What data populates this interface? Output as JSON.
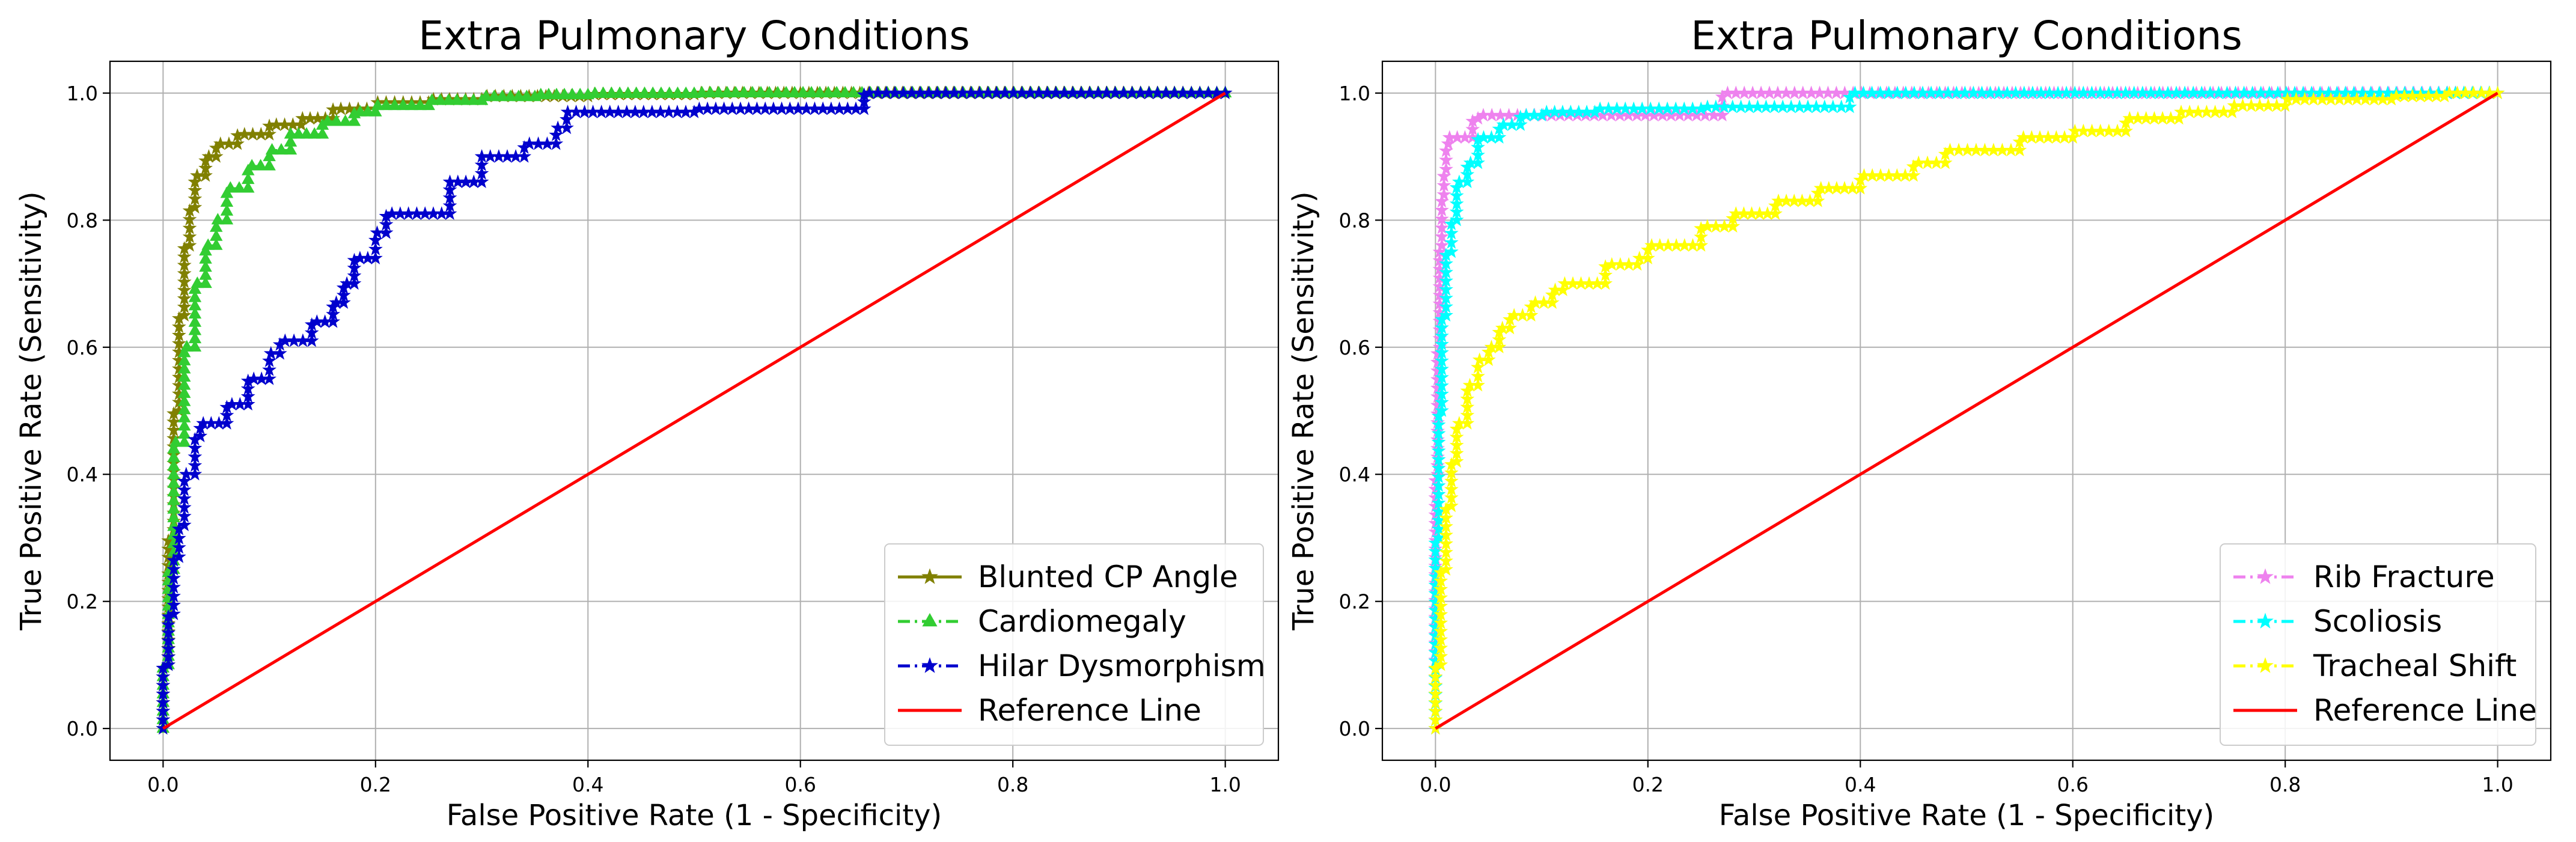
{
  "chart_data": [
    {
      "type": "line",
      "title": "Extra Pulmonary Conditions",
      "xlabel": "False Positive Rate (1 - Specificity)",
      "ylabel": "True Positive Rate (Sensitivity)",
      "xlim": [
        -0.05,
        1.05
      ],
      "ylim": [
        -0.05,
        1.05
      ],
      "xticks": [
        "0.0",
        "0.2",
        "0.4",
        "0.6",
        "0.8",
        "1.0"
      ],
      "yticks": [
        "0.0",
        "0.2",
        "0.4",
        "0.6",
        "0.8",
        "1.0"
      ],
      "grid": true,
      "legend_position": "lower right",
      "series": [
        {
          "name": "Blunted CP Angle",
          "color": "#808000",
          "marker": "star",
          "linestyle": "solid",
          "points": [
            [
              0,
              0
            ],
            [
              0.005,
              0.1
            ],
            [
              0.01,
              0.3
            ],
            [
              0.015,
              0.5
            ],
            [
              0.02,
              0.65
            ],
            [
              0.025,
              0.76
            ],
            [
              0.03,
              0.82
            ],
            [
              0.04,
              0.87
            ],
            [
              0.05,
              0.9
            ],
            [
              0.07,
              0.92
            ],
            [
              0.1,
              0.935
            ],
            [
              0.13,
              0.95
            ],
            [
              0.16,
              0.96
            ],
            [
              0.2,
              0.975
            ],
            [
              0.25,
              0.985
            ],
            [
              0.3,
              0.99
            ],
            [
              0.4,
              0.995
            ],
            [
              0.5,
              0.998
            ],
            [
              0.6,
              1.0
            ],
            [
              0.8,
              1.0
            ],
            [
              1.0,
              1.0
            ]
          ]
        },
        {
          "name": "Cardiomegaly",
          "color": "#32cd32",
          "marker": "triangle",
          "linestyle": "dashdot",
          "points": [
            [
              0,
              0
            ],
            [
              0.005,
              0.1
            ],
            [
              0.01,
              0.25
            ],
            [
              0.02,
              0.45
            ],
            [
              0.03,
              0.6
            ],
            [
              0.04,
              0.7
            ],
            [
              0.05,
              0.76
            ],
            [
              0.06,
              0.8
            ],
            [
              0.08,
              0.85
            ],
            [
              0.1,
              0.885
            ],
            [
              0.12,
              0.91
            ],
            [
              0.15,
              0.935
            ],
            [
              0.18,
              0.955
            ],
            [
              0.2,
              0.97
            ],
            [
              0.25,
              0.98
            ],
            [
              0.3,
              0.988
            ],
            [
              0.35,
              0.994
            ],
            [
              0.4,
              0.997
            ],
            [
              0.5,
              0.999
            ],
            [
              0.65,
              1.0
            ],
            [
              1.0,
              1.0
            ]
          ]
        },
        {
          "name": "Hilar Dysmorphism",
          "color": "#0000cd",
          "marker": "star",
          "linestyle": "dashdot",
          "points": [
            [
              0,
              0
            ],
            [
              0.005,
              0.1
            ],
            [
              0.01,
              0.18
            ],
            [
              0.015,
              0.27
            ],
            [
              0.02,
              0.32
            ],
            [
              0.03,
              0.4
            ],
            [
              0.035,
              0.46
            ],
            [
              0.06,
              0.48
            ],
            [
              0.08,
              0.51
            ],
            [
              0.1,
              0.55
            ],
            [
              0.11,
              0.59
            ],
            [
              0.14,
              0.61
            ],
            [
              0.16,
              0.64
            ],
            [
              0.17,
              0.67
            ],
            [
              0.18,
              0.7
            ],
            [
              0.2,
              0.74
            ],
            [
              0.21,
              0.78
            ],
            [
              0.27,
              0.81
            ],
            [
              0.3,
              0.86
            ],
            [
              0.34,
              0.9
            ],
            [
              0.37,
              0.92
            ],
            [
              0.38,
              0.945
            ],
            [
              0.5,
              0.97
            ],
            [
              0.66,
              0.975
            ],
            [
              0.665,
              1.0
            ],
            [
              1.0,
              1.0
            ]
          ]
        },
        {
          "name": "Reference Line",
          "color": "#ff0000",
          "marker": "none",
          "linestyle": "solid",
          "points": [
            [
              0,
              0
            ],
            [
              1,
              1
            ]
          ]
        }
      ]
    },
    {
      "type": "line",
      "title": "Extra Pulmonary Conditions",
      "xlabel": "False Positive Rate (1 - Specificity)",
      "ylabel": "True Positive Rate (Sensitivity)",
      "xlim": [
        -0.05,
        1.05
      ],
      "ylim": [
        -0.05,
        1.05
      ],
      "xticks": [
        "0.0",
        "0.2",
        "0.4",
        "0.6",
        "0.8",
        "1.0"
      ],
      "yticks": [
        "0.0",
        "0.2",
        "0.4",
        "0.6",
        "0.8",
        "1.0"
      ],
      "grid": true,
      "legend_position": "lower right",
      "series": [
        {
          "name": "Rib Fracture",
          "color": "#ee82ee",
          "marker": "star",
          "linestyle": "dashdot",
          "points": [
            [
              0,
              0
            ],
            [
              0.002,
              0.4
            ],
            [
              0.004,
              0.6
            ],
            [
              0.006,
              0.76
            ],
            [
              0.008,
              0.84
            ],
            [
              0.01,
              0.88
            ],
            [
              0.012,
              0.92
            ],
            [
              0.035,
              0.93
            ],
            [
              0.04,
              0.96
            ],
            [
              0.27,
              0.965
            ],
            [
              0.275,
              1.0
            ],
            [
              1.0,
              1.0
            ]
          ]
        },
        {
          "name": "Scoliosis",
          "color": "#00ffff",
          "marker": "star",
          "linestyle": "dashdot",
          "points": [
            [
              0,
              0
            ],
            [
              0.003,
              0.3
            ],
            [
              0.006,
              0.5
            ],
            [
              0.01,
              0.65
            ],
            [
              0.015,
              0.75
            ],
            [
              0.02,
              0.8
            ],
            [
              0.03,
              0.86
            ],
            [
              0.04,
              0.89
            ],
            [
              0.06,
              0.93
            ],
            [
              0.08,
              0.95
            ],
            [
              0.1,
              0.965
            ],
            [
              0.15,
              0.97
            ],
            [
              0.25,
              0.975
            ],
            [
              0.39,
              0.978
            ],
            [
              0.395,
              1.0
            ],
            [
              1.0,
              1.0
            ]
          ]
        },
        {
          "name": "Tracheal Shift",
          "color": "#ffff00",
          "marker": "star",
          "linestyle": "dashdot",
          "points": [
            [
              0,
              0
            ],
            [
              0.005,
              0.1
            ],
            [
              0.01,
              0.25
            ],
            [
              0.015,
              0.35
            ],
            [
              0.02,
              0.42
            ],
            [
              0.03,
              0.48
            ],
            [
              0.04,
              0.54
            ],
            [
              0.05,
              0.58
            ],
            [
              0.06,
              0.6
            ],
            [
              0.07,
              0.63
            ],
            [
              0.09,
              0.65
            ],
            [
              0.11,
              0.67
            ],
            [
              0.12,
              0.69
            ],
            [
              0.16,
              0.7
            ],
            [
              0.19,
              0.73
            ],
            [
              0.2,
              0.74
            ],
            [
              0.25,
              0.76
            ],
            [
              0.28,
              0.79
            ],
            [
              0.32,
              0.81
            ],
            [
              0.36,
              0.83
            ],
            [
              0.4,
              0.85
            ],
            [
              0.45,
              0.87
            ],
            [
              0.48,
              0.89
            ],
            [
              0.55,
              0.91
            ],
            [
              0.6,
              0.93
            ],
            [
              0.65,
              0.94
            ],
            [
              0.7,
              0.96
            ],
            [
              0.75,
              0.97
            ],
            [
              0.8,
              0.98
            ],
            [
              0.9,
              0.99
            ],
            [
              0.95,
              0.995
            ],
            [
              1.0,
              1.0
            ]
          ]
        },
        {
          "name": "Reference Line",
          "color": "#ff0000",
          "marker": "none",
          "linestyle": "solid",
          "points": [
            [
              0,
              0
            ],
            [
              1,
              1
            ]
          ]
        }
      ]
    }
  ]
}
